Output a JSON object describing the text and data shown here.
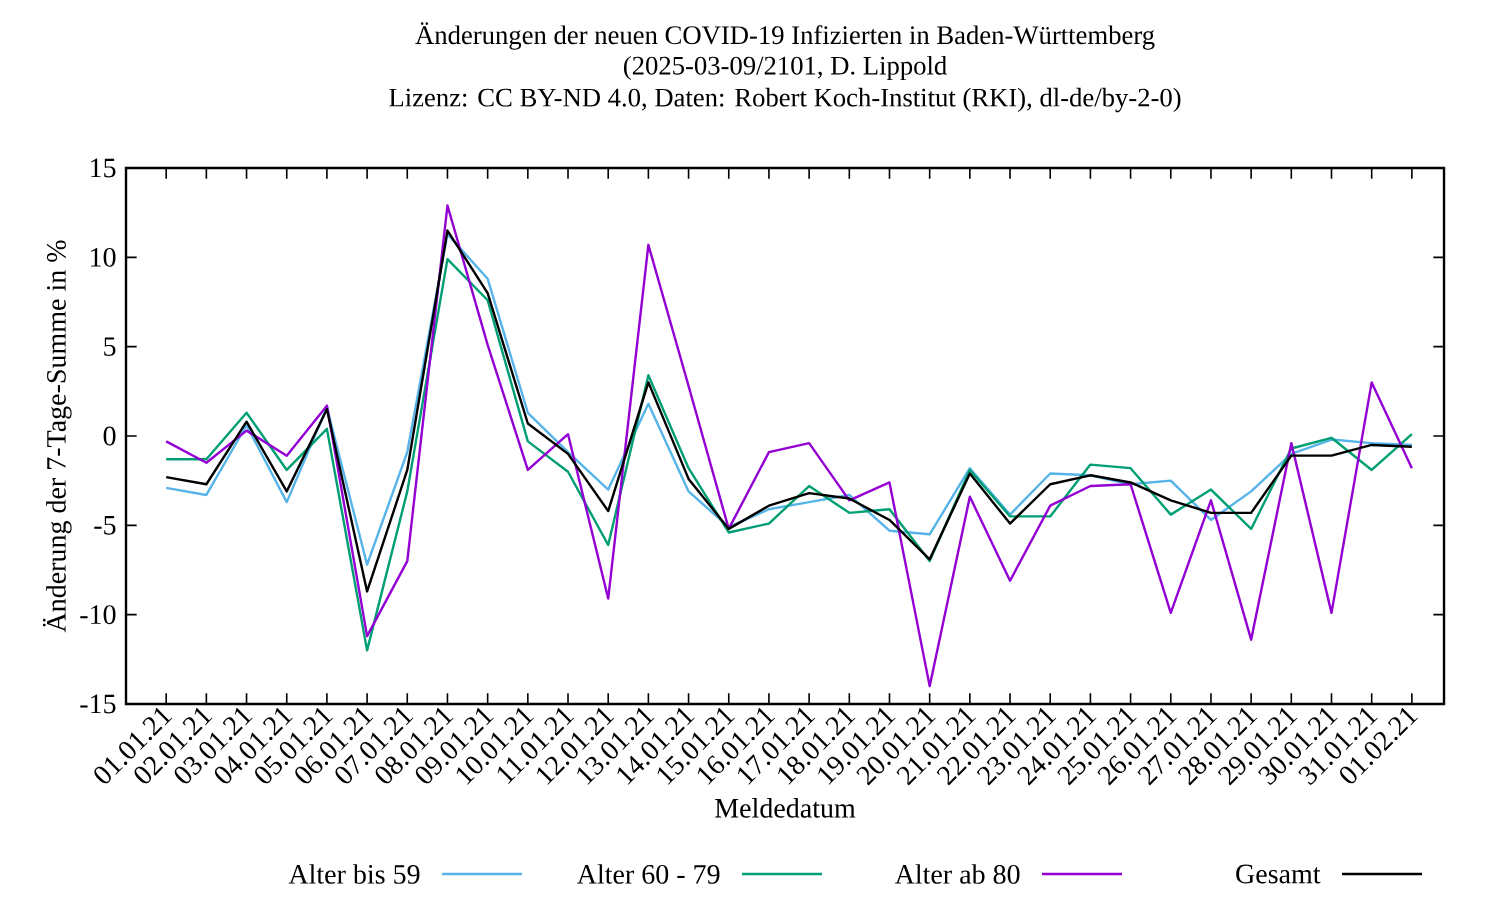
{
  "chart_data": {
    "type": "line",
    "title": "Änderungen der neuen COVID-19 Infizierten in Baden-Württemberg",
    "subtitle": "(2025-03-09/2101, D. Lippold",
    "annotations": [
      "Lizenz: CC BY-ND 4.0, Daten: Robert Koch-Institut (RKI), dl-de/by-2-0)"
    ],
    "xlabel": "Meldedatum",
    "ylabel": "Änderung der 7-Tage-Summe in %",
    "categories": [
      "01.01.21",
      "02.01.21",
      "03.01.21",
      "04.01.21",
      "05.01.21",
      "06.01.21",
      "07.01.21",
      "08.01.21",
      "09.01.21",
      "10.01.21",
      "11.01.21",
      "12.01.21",
      "13.01.21",
      "14.01.21",
      "15.01.21",
      "16.01.21",
      "17.01.21",
      "18.01.21",
      "19.01.21",
      "20.01.21",
      "21.01.21",
      "22.01.21",
      "23.01.21",
      "24.01.21",
      "25.01.21",
      "26.01.21",
      "27.01.21",
      "28.01.21",
      "29.01.21",
      "30.01.21",
      "31.01.21",
      "01.02.21"
    ],
    "series": [
      {
        "name": "Alter bis 59",
        "color": "#56b4e9",
        "values": [
          -2.9,
          -3.3,
          0.6,
          -3.7,
          1.6,
          -7.2,
          -0.9,
          11.3,
          8.8,
          1.3,
          -0.9,
          -3.0,
          1.8,
          -3.1,
          -5.1,
          -4.1,
          -3.7,
          -3.3,
          -5.3,
          -5.5,
          -1.8,
          -4.4,
          -2.1,
          -2.2,
          -2.7,
          -2.5,
          -4.7,
          -3.1,
          -1.0,
          -0.2,
          -0.4,
          -0.5
        ]
      },
      {
        "name": "Alter 60 - 79",
        "color": "#009e73",
        "values": [
          -1.3,
          -1.3,
          1.3,
          -1.9,
          0.4,
          -12.0,
          -3.1,
          9.9,
          7.6,
          -0.3,
          -2.0,
          -6.1,
          3.4,
          -1.8,
          -5.4,
          -4.9,
          -2.8,
          -4.3,
          -4.1,
          -7.0,
          -1.9,
          -4.5,
          -4.5,
          -1.6,
          -1.8,
          -4.4,
          -3.0,
          -5.2,
          -0.7,
          -0.1,
          -1.9,
          0.1
        ]
      },
      {
        "name": "Alter ab 80",
        "color": "#9400d3",
        "values": [
          -0.3,
          -1.5,
          0.3,
          -1.1,
          1.7,
          -11.2,
          -7.0,
          12.9,
          5.1,
          -1.9,
          0.1,
          -9.1,
          10.7,
          2.8,
          -5.2,
          -0.9,
          -0.4,
          -3.6,
          -2.6,
          -14.0,
          -3.4,
          -8.1,
          -3.9,
          -2.8,
          -2.7,
          -9.9,
          -3.6,
          -11.4,
          -0.4,
          -9.9,
          3.0,
          -1.8
        ]
      },
      {
        "name": "Gesamt",
        "color": "#000000",
        "values": [
          -2.3,
          -2.7,
          0.8,
          -3.1,
          1.5,
          -8.7,
          -1.9,
          11.5,
          8.0,
          0.7,
          -1.0,
          -4.2,
          3.0,
          -2.4,
          -5.2,
          -3.9,
          -3.2,
          -3.5,
          -4.7,
          -6.9,
          -2.1,
          -4.9,
          -2.7,
          -2.2,
          -2.6,
          -3.6,
          -4.3,
          -4.3,
          -1.1,
          -1.1,
          -0.5,
          -0.6
        ]
      }
    ],
    "ylim": [
      -15,
      15
    ],
    "yticks": [
      -15,
      -10,
      -5,
      0,
      5,
      10,
      15
    ],
    "legend": "bottom",
    "marker": "none",
    "line_style": "solid"
  }
}
